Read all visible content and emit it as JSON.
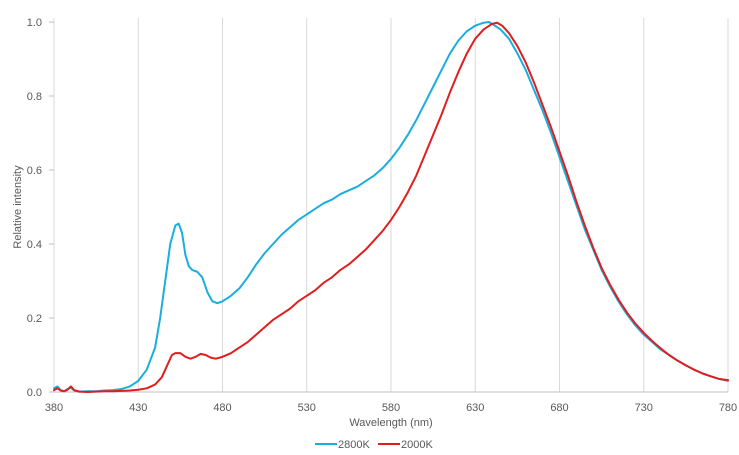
{
  "chart_data": {
    "type": "line",
    "xlabel": "Wavelength (nm)",
    "ylabel": "Relative intensity",
    "xlim": [
      380,
      780
    ],
    "ylim": [
      0,
      1.0
    ],
    "x_ticks": [
      "380",
      "430",
      "480",
      "530",
      "580",
      "630",
      "680",
      "730",
      "780"
    ],
    "y_ticks": [
      "0.0",
      "0.2",
      "0.4",
      "0.6",
      "0.8",
      "1.0"
    ],
    "grid": "vertical",
    "legend_position": "bottom",
    "series": [
      {
        "name": "2800K",
        "color": "#1aaedd",
        "points": [
          [
            380,
            0.01
          ],
          [
            382,
            0.015
          ],
          [
            384,
            0.005
          ],
          [
            386,
            0.002
          ],
          [
            388,
            0.008
          ],
          [
            390,
            0.012
          ],
          [
            392,
            0.004
          ],
          [
            395,
            0.001
          ],
          [
            400,
            0.002
          ],
          [
            405,
            0.002
          ],
          [
            410,
            0.004
          ],
          [
            415,
            0.005
          ],
          [
            420,
            0.008
          ],
          [
            425,
            0.015
          ],
          [
            430,
            0.03
          ],
          [
            435,
            0.06
          ],
          [
            440,
            0.12
          ],
          [
            443,
            0.2
          ],
          [
            446,
            0.3
          ],
          [
            449,
            0.4
          ],
          [
            452,
            0.45
          ],
          [
            454,
            0.455
          ],
          [
            456,
            0.43
          ],
          [
            458,
            0.37
          ],
          [
            460,
            0.34
          ],
          [
            462,
            0.33
          ],
          [
            465,
            0.325
          ],
          [
            468,
            0.31
          ],
          [
            471,
            0.27
          ],
          [
            474,
            0.245
          ],
          [
            477,
            0.24
          ],
          [
            480,
            0.245
          ],
          [
            485,
            0.26
          ],
          [
            490,
            0.28
          ],
          [
            495,
            0.31
          ],
          [
            500,
            0.345
          ],
          [
            505,
            0.375
          ],
          [
            510,
            0.4
          ],
          [
            515,
            0.425
          ],
          [
            520,
            0.445
          ],
          [
            525,
            0.465
          ],
          [
            530,
            0.48
          ],
          [
            535,
            0.495
          ],
          [
            540,
            0.51
          ],
          [
            545,
            0.52
          ],
          [
            550,
            0.535
          ],
          [
            555,
            0.545
          ],
          [
            560,
            0.555
          ],
          [
            565,
            0.57
          ],
          [
            570,
            0.585
          ],
          [
            575,
            0.605
          ],
          [
            580,
            0.63
          ],
          [
            585,
            0.66
          ],
          [
            590,
            0.695
          ],
          [
            595,
            0.735
          ],
          [
            600,
            0.78
          ],
          [
            605,
            0.825
          ],
          [
            610,
            0.87
          ],
          [
            615,
            0.915
          ],
          [
            620,
            0.95
          ],
          [
            625,
            0.975
          ],
          [
            630,
            0.99
          ],
          [
            635,
            0.998
          ],
          [
            638,
            1.0
          ],
          [
            640,
            0.995
          ],
          [
            645,
            0.98
          ],
          [
            650,
            0.955
          ],
          [
            655,
            0.915
          ],
          [
            660,
            0.87
          ],
          [
            665,
            0.815
          ],
          [
            670,
            0.76
          ],
          [
            675,
            0.7
          ],
          [
            680,
            0.635
          ],
          [
            685,
            0.57
          ],
          [
            690,
            0.505
          ],
          [
            695,
            0.44
          ],
          [
            700,
            0.385
          ],
          [
            705,
            0.33
          ],
          [
            710,
            0.285
          ],
          [
            715,
            0.245
          ],
          [
            720,
            0.21
          ],
          [
            725,
            0.18
          ],
          [
            730,
            0.155
          ],
          [
            735,
            0.135
          ],
          [
            740,
            0.115
          ],
          [
            745,
            0.1
          ],
          [
            750,
            0.085
          ],
          [
            755,
            0.072
          ],
          [
            760,
            0.06
          ],
          [
            765,
            0.05
          ],
          [
            770,
            0.042
          ],
          [
            775,
            0.035
          ],
          [
            780,
            0.03
          ]
        ]
      },
      {
        "name": "2000K",
        "color": "#e01e1e",
        "points": [
          [
            380,
            0.005
          ],
          [
            382,
            0.01
          ],
          [
            384,
            0.004
          ],
          [
            386,
            0.002
          ],
          [
            388,
            0.006
          ],
          [
            390,
            0.015
          ],
          [
            392,
            0.005
          ],
          [
            395,
            0.001
          ],
          [
            400,
            0.0
          ],
          [
            405,
            0.001
          ],
          [
            410,
            0.002
          ],
          [
            415,
            0.002
          ],
          [
            420,
            0.003
          ],
          [
            425,
            0.004
          ],
          [
            430,
            0.006
          ],
          [
            435,
            0.01
          ],
          [
            440,
            0.02
          ],
          [
            444,
            0.04
          ],
          [
            447,
            0.07
          ],
          [
            450,
            0.1
          ],
          [
            452,
            0.105
          ],
          [
            455,
            0.105
          ],
          [
            458,
            0.095
          ],
          [
            461,
            0.09
          ],
          [
            464,
            0.095
          ],
          [
            467,
            0.103
          ],
          [
            470,
            0.1
          ],
          [
            473,
            0.093
          ],
          [
            476,
            0.09
          ],
          [
            480,
            0.095
          ],
          [
            485,
            0.105
          ],
          [
            490,
            0.12
          ],
          [
            495,
            0.135
          ],
          [
            500,
            0.155
          ],
          [
            505,
            0.175
          ],
          [
            510,
            0.195
          ],
          [
            515,
            0.21
          ],
          [
            520,
            0.225
          ],
          [
            525,
            0.245
          ],
          [
            530,
            0.26
          ],
          [
            535,
            0.275
          ],
          [
            540,
            0.295
          ],
          [
            545,
            0.31
          ],
          [
            550,
            0.33
          ],
          [
            555,
            0.345
          ],
          [
            560,
            0.365
          ],
          [
            565,
            0.385
          ],
          [
            570,
            0.41
          ],
          [
            575,
            0.435
          ],
          [
            580,
            0.465
          ],
          [
            585,
            0.5
          ],
          [
            590,
            0.54
          ],
          [
            595,
            0.585
          ],
          [
            600,
            0.64
          ],
          [
            605,
            0.695
          ],
          [
            610,
            0.75
          ],
          [
            615,
            0.81
          ],
          [
            620,
            0.865
          ],
          [
            625,
            0.915
          ],
          [
            630,
            0.955
          ],
          [
            635,
            0.98
          ],
          [
            640,
            0.995
          ],
          [
            643,
            0.998
          ],
          [
            646,
            0.99
          ],
          [
            650,
            0.97
          ],
          [
            655,
            0.935
          ],
          [
            660,
            0.89
          ],
          [
            665,
            0.835
          ],
          [
            670,
            0.775
          ],
          [
            675,
            0.715
          ],
          [
            680,
            0.65
          ],
          [
            685,
            0.585
          ],
          [
            690,
            0.515
          ],
          [
            695,
            0.45
          ],
          [
            700,
            0.39
          ],
          [
            705,
            0.335
          ],
          [
            710,
            0.29
          ],
          [
            715,
            0.25
          ],
          [
            720,
            0.215
          ],
          [
            725,
            0.185
          ],
          [
            730,
            0.16
          ],
          [
            735,
            0.138
          ],
          [
            740,
            0.118
          ],
          [
            745,
            0.1
          ],
          [
            750,
            0.085
          ],
          [
            755,
            0.072
          ],
          [
            760,
            0.06
          ],
          [
            765,
            0.05
          ],
          [
            770,
            0.042
          ],
          [
            775,
            0.035
          ],
          [
            780,
            0.032
          ]
        ]
      }
    ]
  }
}
